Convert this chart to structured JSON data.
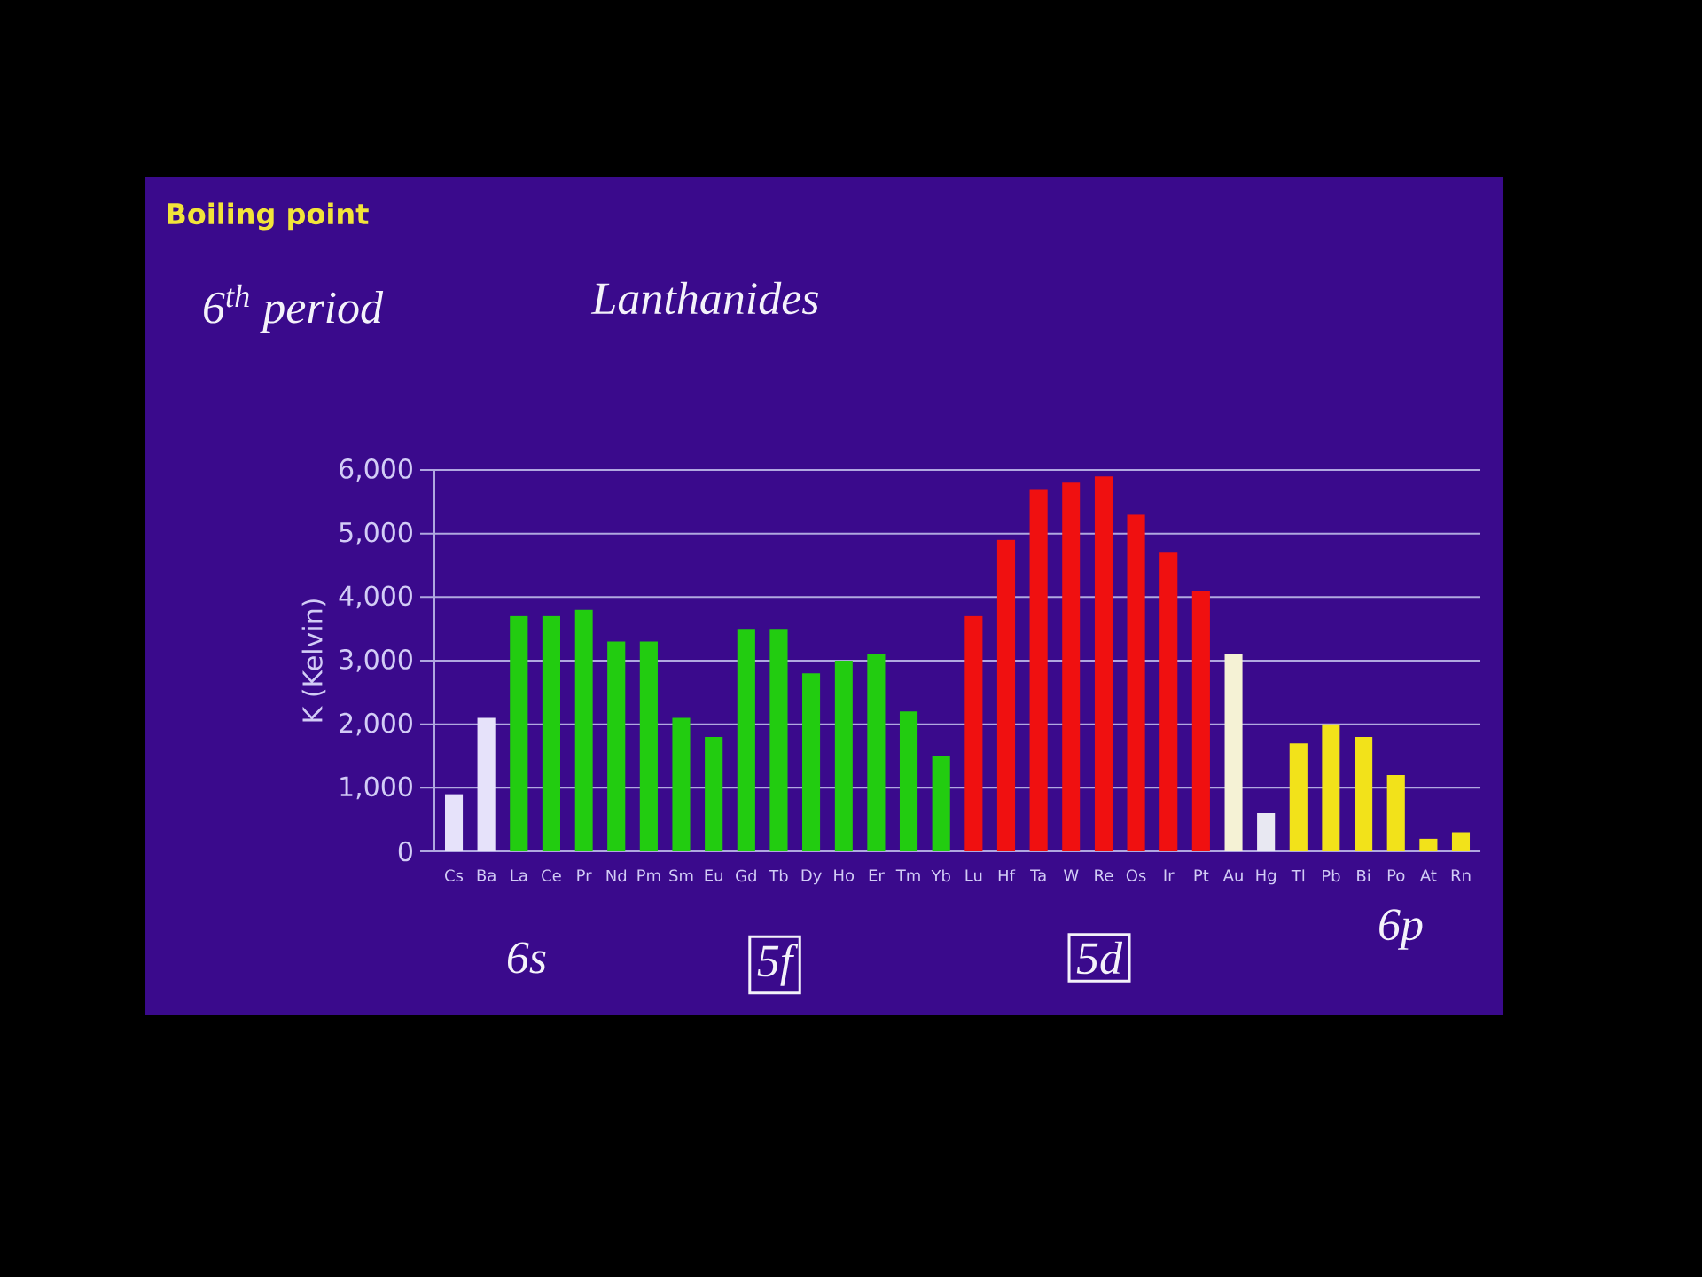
{
  "chart_data": {
    "type": "bar",
    "title": "Boiling point",
    "ylabel": "K (Kelvin)",
    "categories": [
      "Cs",
      "Ba",
      "La",
      "Ce",
      "Pr",
      "Nd",
      "Pm",
      "Sm",
      "Eu",
      "Gd",
      "Tb",
      "Dy",
      "Ho",
      "Er",
      "Tm",
      "Yb",
      "Lu",
      "Hf",
      "Ta",
      "W",
      "Re",
      "Os",
      "Ir",
      "Pt",
      "Au",
      "Hg",
      "Tl",
      "Pb",
      "Bi",
      "Po",
      "At",
      "Rn"
    ],
    "values": [
      900,
      2100,
      3700,
      3700,
      3800,
      3300,
      3300,
      2100,
      1800,
      3500,
      3500,
      2800,
      3000,
      3100,
      2200,
      1500,
      3700,
      4900,
      5700,
      5800,
      5900,
      5300,
      4700,
      4100,
      3100,
      600,
      1700,
      2000,
      1800,
      1200,
      200,
      300
    ],
    "colors": [
      "#e6e2fa",
      "#e6e2fa",
      "#22cc10",
      "#22cc10",
      "#22cc10",
      "#22cc10",
      "#22cc10",
      "#22cc10",
      "#22cc10",
      "#22cc10",
      "#22cc10",
      "#22cc10",
      "#22cc10",
      "#22cc10",
      "#22cc10",
      "#22cc10",
      "#f01010",
      "#f01010",
      "#f01010",
      "#f01010",
      "#f01010",
      "#f01010",
      "#f01010",
      "#f01010",
      "#f5f2d5",
      "#e8e8f2",
      "#f2e21a",
      "#f2e21a",
      "#f2e21a",
      "#f2e21a",
      "#f2e21a",
      "#f2e21a"
    ],
    "ylim": [
      0,
      6000
    ],
    "yticks": [
      0,
      {
        "value": 1000,
        "label": "1,000"
      },
      {
        "value": 2000,
        "label": "2,000"
      },
      {
        "value": 3000,
        "label": "3,000"
      },
      {
        "value": 4000,
        "label": "4,000"
      },
      {
        "value": 5000,
        "label": "5,000"
      },
      {
        "value": 6000,
        "label": "6,000"
      }
    ],
    "grid": "y",
    "annotations": [
      "6$^{th}$ period",
      "Lanthanides",
      "6s",
      "5f",
      "5d",
      "6p"
    ]
  }
}
